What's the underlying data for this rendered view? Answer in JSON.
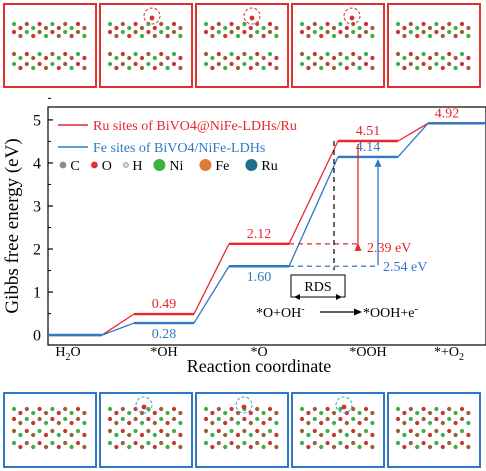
{
  "chart_data": {
    "type": "line",
    "subtype": "free-energy-step-diagram",
    "title": "",
    "xlabel": "Reaction coordinate",
    "ylabel": "Gibbs free energy (eV)",
    "ylim": [
      0,
      5.3
    ],
    "yticks": [
      0,
      1,
      2,
      3,
      4,
      5
    ],
    "grid": false,
    "legend_position": "top-left",
    "categories": [
      "H2O",
      "*OH",
      "*O",
      "*OOH",
      "*+O2"
    ],
    "series": [
      {
        "name": "Ru sites of BiVO4@NiFe-LDHs/Ru",
        "color": "#e8262b",
        "values": [
          0,
          0.49,
          2.12,
          4.51,
          4.92
        ],
        "value_labels": [
          "",
          "0.49",
          "2.12",
          "4.51",
          "4.92"
        ]
      },
      {
        "name": "Fe sites of BiVO4/NiFe-LDHs",
        "color": "#2f78c6",
        "values": [
          0,
          0.28,
          1.6,
          4.14,
          4.92
        ],
        "value_labels": [
          "",
          "0.28",
          "1.60",
          "4.14",
          ""
        ]
      }
    ],
    "annotations": [
      {
        "text": "2.39 eV",
        "color": "#e8262b",
        "from": 2.12,
        "to": 4.51,
        "series": 0
      },
      {
        "text": "2.54 eV",
        "color": "#2f78c6",
        "from": 1.6,
        "to": 4.14,
        "series": 1
      },
      {
        "text": "RDS",
        "color": "#000000"
      },
      {
        "text_left": "*O+OH",
        "text_left_sup": "-",
        "text_right": "*OOH+e",
        "text_right_sup": "-"
      }
    ],
    "atom_legend": [
      {
        "symbol": "C",
        "color": "#8a8a8a"
      },
      {
        "symbol": "O",
        "color": "#e03030"
      },
      {
        "symbol": "H",
        "color": "#d8d8d8"
      },
      {
        "symbol": "Ni",
        "color": "#3cb043"
      },
      {
        "symbol": "Fe",
        "color": "#e07a3a"
      },
      {
        "symbol": "Ru",
        "color": "#1f6f8b"
      }
    ],
    "structure_panels": {
      "top_frame_color": "#e0332e",
      "bottom_frame_color": "#2f78c6",
      "count": 5
    }
  }
}
